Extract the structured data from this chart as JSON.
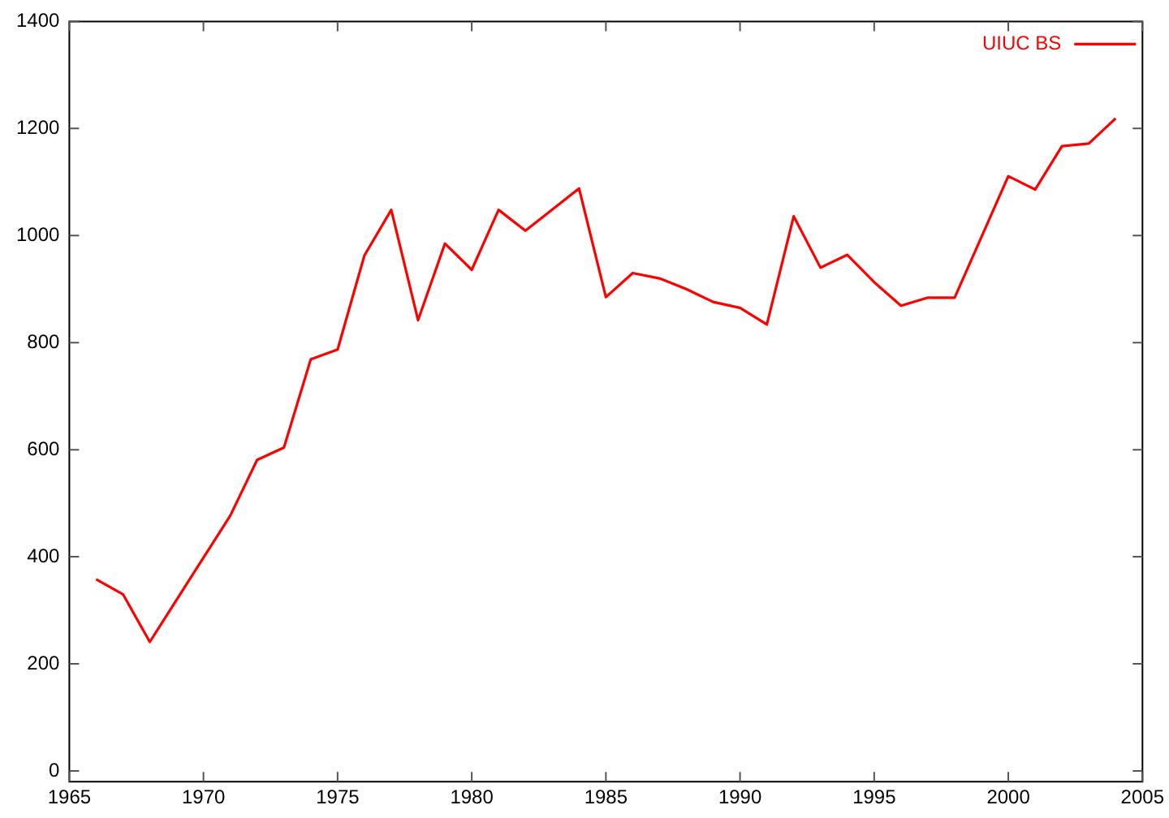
{
  "chart_data": {
    "type": "line",
    "x": [
      1966,
      1967,
      1968,
      1971,
      1972,
      1973,
      1974,
      1975,
      1976,
      1977,
      1978,
      1979,
      1980,
      1981,
      1982,
      1984,
      1985,
      1986,
      1987,
      1988,
      1989,
      1990,
      1991,
      1992,
      1993,
      1994,
      1995,
      1996,
      1997,
      1998,
      2000,
      2001,
      2002,
      2003,
      2004
    ],
    "series": [
      {
        "name": "UIUC BS",
        "color": "#ff0000",
        "values": [
          358,
          330,
          241,
          477,
          581,
          604,
          769,
          787,
          963,
          1048,
          842,
          985,
          936,
          1048,
          1009,
          1088,
          885,
          930,
          920,
          900,
          876,
          865,
          834,
          1036,
          940,
          964,
          913,
          869,
          884,
          884,
          1111,
          1086,
          1167,
          1172,
          1219
        ]
      }
    ],
    "xlim": [
      1965,
      2005
    ],
    "xticks": [
      1965,
      1970,
      1975,
      1980,
      1985,
      1990,
      1995,
      2000,
      2005
    ],
    "ylim": [
      -20,
      1400
    ],
    "yticks": [
      0,
      200,
      400,
      600,
      800,
      1000,
      1200,
      1400
    ],
    "grid": false,
    "legend": "top right",
    "marker": "none",
    "line_style": "solid"
  }
}
